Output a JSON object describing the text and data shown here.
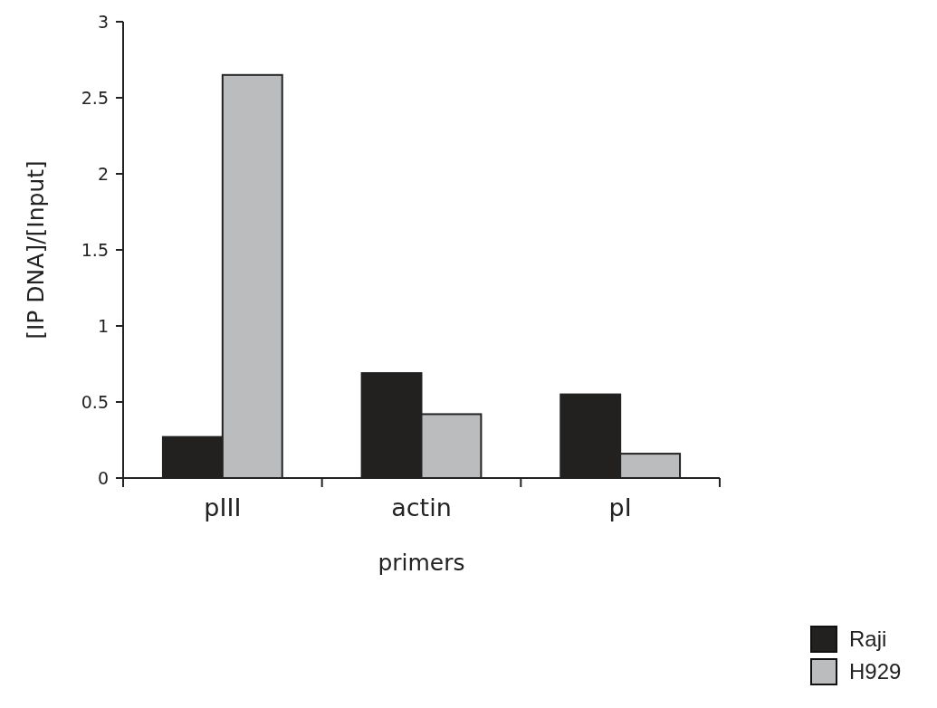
{
  "chart_data": {
    "type": "bar",
    "xlabel": "primers",
    "ylabel": "[IP DNA]/[Input]",
    "categories": [
      "pIII",
      "actin",
      "pI"
    ],
    "series": [
      {
        "name": "Raji",
        "color": "#222120",
        "values": [
          0.27,
          0.69,
          0.55
        ]
      },
      {
        "name": "H929",
        "color": "#bbbcbe",
        "values": [
          2.65,
          0.42,
          0.16
        ]
      }
    ],
    "ylim": [
      0,
      3
    ],
    "yticks": [
      0,
      0.5,
      1,
      1.5,
      2,
      2.5,
      3
    ],
    "grid": false,
    "legend": "bottom right"
  }
}
